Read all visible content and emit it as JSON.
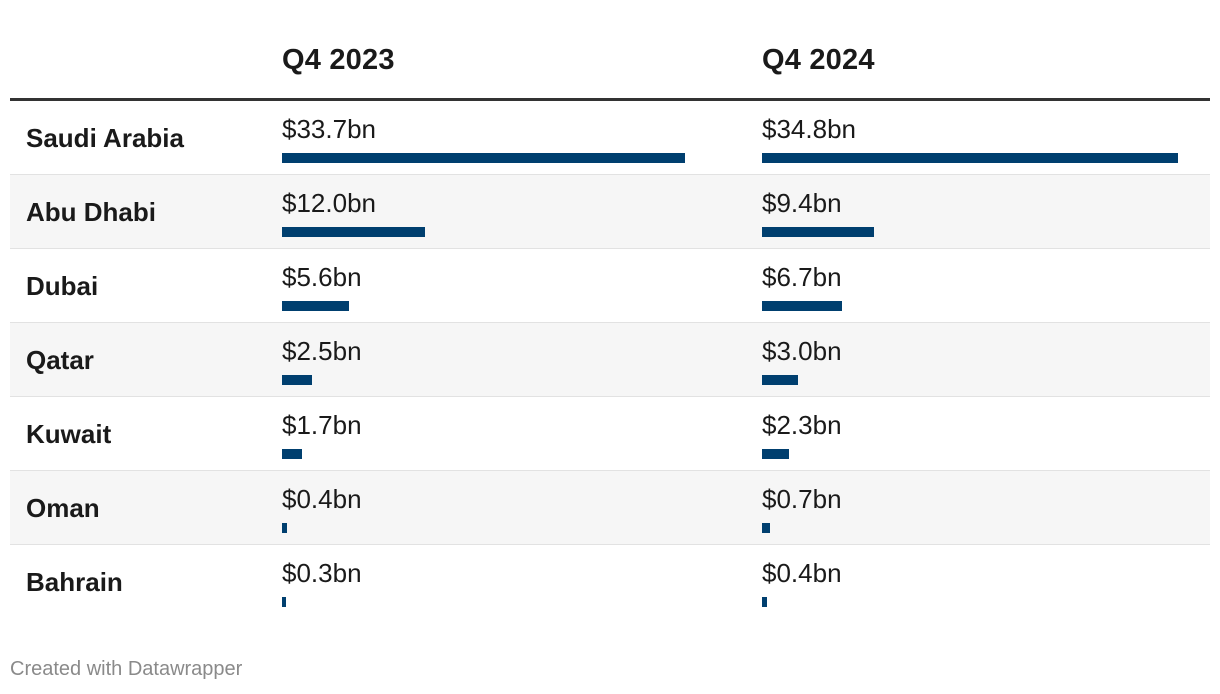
{
  "chart_data": {
    "type": "bar",
    "title": "",
    "columns": [
      "Q4 2023",
      "Q4 2024"
    ],
    "categories": [
      "Saudi Arabia",
      "Abu Dhabi",
      "Dubai",
      "Qatar",
      "Kuwait",
      "Oman",
      "Bahrain"
    ],
    "unit": "$bn",
    "max": 34.8,
    "series": [
      {
        "name": "Q4 2023",
        "values": [
          33.7,
          12.0,
          5.6,
          2.5,
          1.7,
          0.4,
          0.3
        ]
      },
      {
        "name": "Q4 2024",
        "values": [
          34.8,
          9.4,
          6.7,
          3.0,
          2.3,
          0.7,
          0.4
        ]
      }
    ],
    "rows": [
      {
        "region": "Saudi Arabia",
        "q4_2023": "$33.7bn",
        "q4_2024": "$34.8bn"
      },
      {
        "region": "Abu Dhabi",
        "q4_2023": "$12.0bn",
        "q4_2024": "$9.4bn"
      },
      {
        "region": "Dubai",
        "q4_2023": "$5.6bn",
        "q4_2024": "$6.7bn"
      },
      {
        "region": "Qatar",
        "q4_2023": "$2.5bn",
        "q4_2024": "$3.0bn"
      },
      {
        "region": "Kuwait",
        "q4_2023": "$1.7bn",
        "q4_2024": "$2.3bn"
      },
      {
        "region": "Oman",
        "q4_2023": "$0.4bn",
        "q4_2024": "$0.7bn"
      },
      {
        "region": "Bahrain",
        "q4_2023": "$0.3bn",
        "q4_2024": "$0.4bn"
      }
    ],
    "bar_color": "#003f6f"
  },
  "footer": {
    "credit": "Created with Datawrapper"
  }
}
